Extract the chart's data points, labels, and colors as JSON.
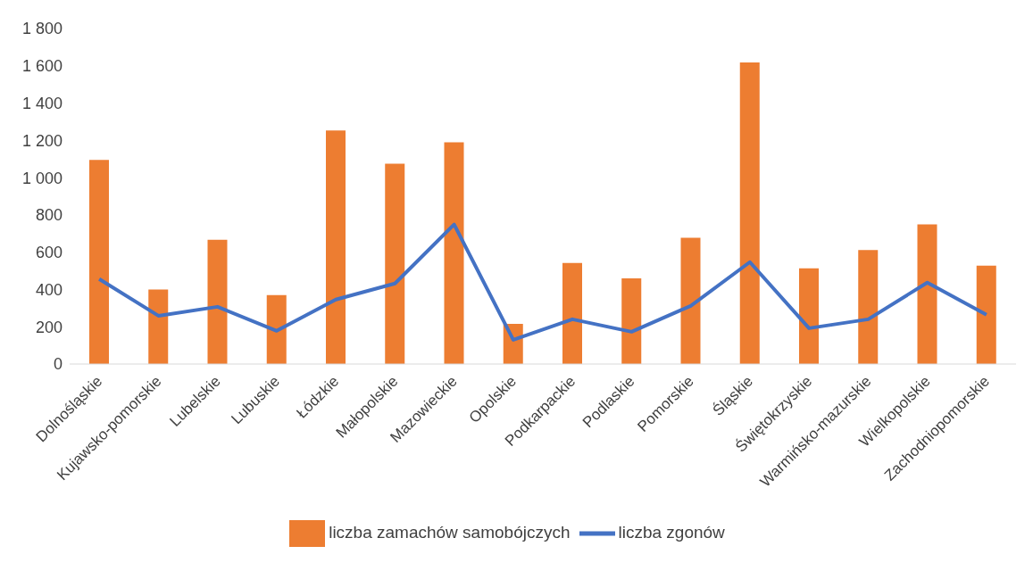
{
  "chart_data": {
    "type": "bar",
    "categories": [
      "Dolnośląskie",
      "Kujawsko-pomorskie",
      "Lubelskie",
      "Lubuskie",
      "Łódzkie",
      "Małopolskie",
      "Mazowieckie",
      "Opolskie",
      "Podkarpackie",
      "Podlaskie",
      "Pomorskie",
      "Śląskie",
      "Świętokrzyskie",
      "Warmińsko-mazurskie",
      "Wielkopolskie",
      "Zachodniopomorskie"
    ],
    "series": [
      {
        "name": "liczba zamachów samobójczych",
        "color": "#ed7d31",
        "values": [
          1095,
          400,
          667,
          370,
          1253,
          1075,
          1190,
          216,
          542,
          460,
          677,
          1618,
          514,
          612,
          749,
          528
        ]
      },
      {
        "name": "liczba zgonów",
        "type": "line",
        "color": "#4472c4",
        "values": [
          456,
          259,
          307,
          178,
          346,
          432,
          749,
          130,
          240,
          173,
          312,
          547,
          192,
          240,
          437,
          264
        ]
      }
    ],
    "ylim": [
      0,
      1800
    ],
    "yticks": [
      0,
      200,
      400,
      600,
      800,
      {
        "value": 1000,
        "label": "1 000"
      },
      {
        "value": 1200,
        "label": "1 200"
      },
      {
        "value": 1400,
        "label": "1 400"
      },
      {
        "value": 1600,
        "label": "1 600"
      },
      {
        "value": 1800,
        "label": "1 800"
      }
    ],
    "grid": false,
    "legend": "bottom",
    "marker": "none",
    "line_style": "solid"
  }
}
